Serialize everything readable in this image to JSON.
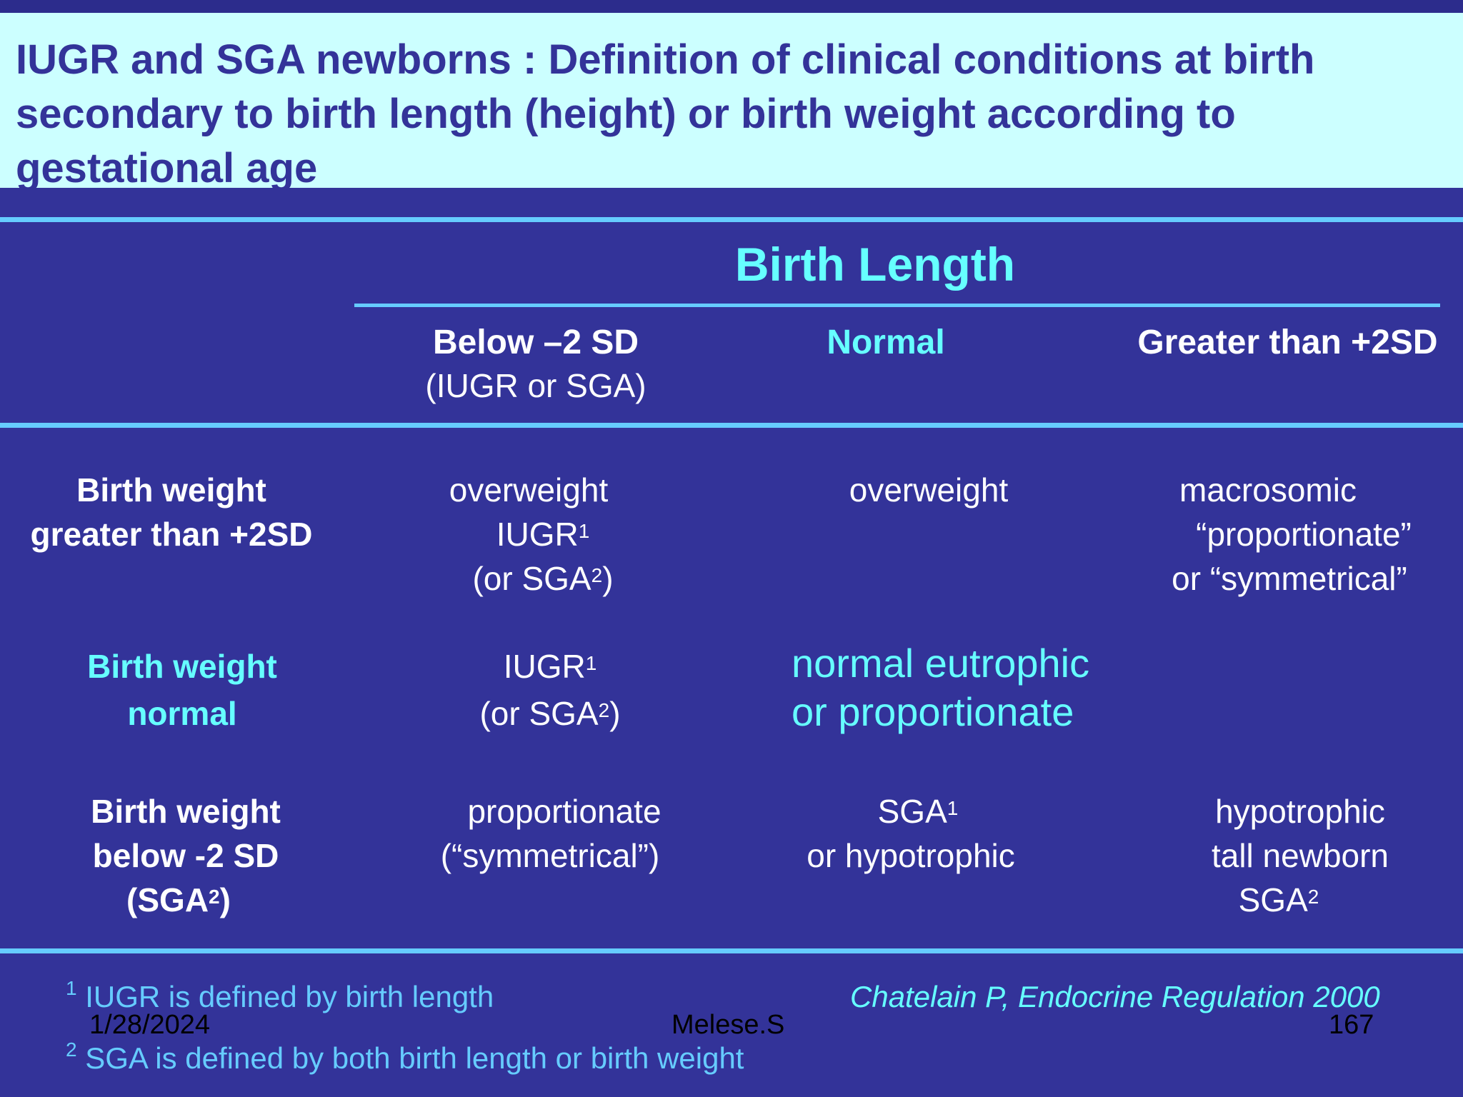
{
  "slide": {
    "title": "IUGR and SGA newborns : Definition of clinical conditions at birth secondary to birth length (height) or birth weight according to gestational age"
  },
  "table": {
    "group_header": "Birth Length",
    "columns": [
      {
        "line1": "Below –2 SD",
        "line2": "(IUGR or SGA)"
      },
      {
        "line1": "Normal"
      },
      {
        "line1": "Greater than +2SD"
      }
    ],
    "rows": [
      {
        "header": {
          "line1": "Birth weight",
          "line2": "greater than +2SD"
        },
        "cells": [
          {
            "line1": "overweight",
            "line2": "IUGR",
            "line2_sup": "1",
            "line3": "(or SGA",
            "line3_sup": "2",
            "line3_end": ")"
          },
          {
            "line1": "overweight"
          },
          {
            "line1": "macrosomic",
            "line2": "“proportionate”",
            "line3": "or “symmetrical”"
          }
        ]
      },
      {
        "header": {
          "line1": "Birth weight",
          "line2": "normal"
        },
        "cells": [
          {
            "line1": "IUGR",
            "line1_sup": "1",
            "line2": "(or SGA",
            "line2_sup": "2",
            "line2_end": ")"
          },
          {
            "line1": "normal eutrophic",
            "line2": "or proportionate"
          },
          {}
        ]
      },
      {
        "header": {
          "line1": "Birth weight",
          "line2": "below  -2 SD",
          "line3": "(SGA",
          "line3_sup": "2",
          "line3_end": ")"
        },
        "cells": [
          {
            "line1": "proportionate",
            "line2": "(“symmetrical”)"
          },
          {
            "line1": "SGA",
            "line1_sup": "1",
            "line2": "or hypotrophic"
          },
          {
            "line1": "hypotrophic",
            "line2": "tall newborn",
            "line3": "SGA",
            "line3_sup": "2"
          }
        ]
      }
    ]
  },
  "footnotes": [
    {
      "marker": "1",
      "text": "IUGR is defined by birth length"
    },
    {
      "marker": "2",
      "text": "SGA is defined by both birth length or birth weight"
    }
  ],
  "citation": "Chatelain P, Endocrine Regulation 2000",
  "footer": {
    "date": "1/28/2024",
    "author": "Melese.S",
    "page": "167"
  },
  "colors": {
    "background": "#333399",
    "title_box": "#ccffff",
    "accent": "#66ffff",
    "rule": "#66ccff"
  }
}
